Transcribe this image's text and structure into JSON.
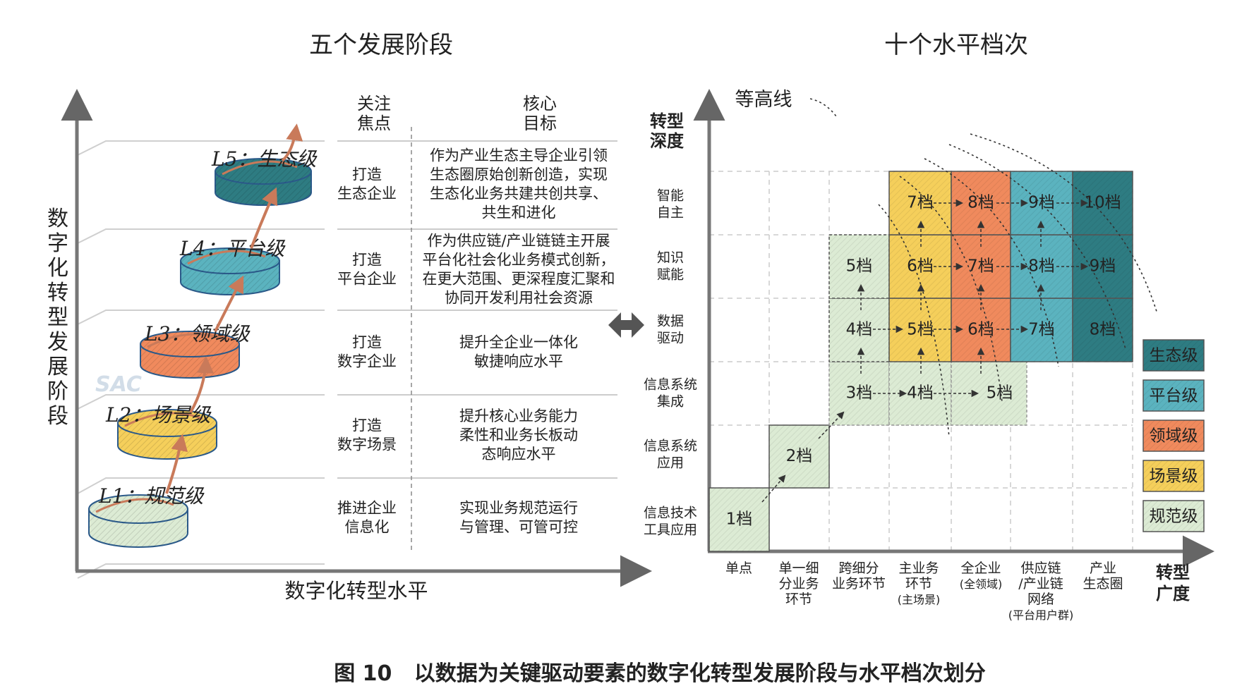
{
  "left_title": "五个发展阶段",
  "right_title": "十个水平档次",
  "left_y_axis": [
    "数",
    "字",
    "化",
    "转",
    "型",
    "发",
    "展",
    "阶",
    "段"
  ],
  "left_x_axis": "数字化转型水平",
  "table_headers": {
    "focus": [
      "关注",
      "焦点"
    ],
    "goal": [
      "核心",
      "目标"
    ]
  },
  "stages": [
    {
      "label": "L5：生态级",
      "focus": [
        "打造",
        "生态企业"
      ],
      "goal": [
        "作为产业生态主导企业引领",
        "生态圈原始创新创造，实现",
        "生态化业务共建共创共享、",
        "共生和进化"
      ]
    },
    {
      "label": "L4：平台级",
      "focus": [
        "打造",
        "平台企业"
      ],
      "goal": [
        "作为供应链/产业链链主开展",
        "平台化社会化业务模式创新，",
        "在更大范围、更深程度汇聚和",
        "协同开发利用社会资源"
      ]
    },
    {
      "label": "L3：领域级",
      "focus": [
        "打造",
        "数字企业"
      ],
      "goal": [
        "提升全企业一体化",
        "敏捷响应水平"
      ]
    },
    {
      "label": "L2：场景级",
      "focus": [
        "打造",
        "数字场景"
      ],
      "goal": [
        "提升核心业务能力",
        "柔性和业务长板动",
        "态响应水平"
      ]
    },
    {
      "label": "L1：规范级",
      "focus": [
        "推进企业",
        "信息化"
      ],
      "goal": [
        "实现业务规范运行",
        "与管理、可管可控"
      ]
    }
  ],
  "watermark": "SAC",
  "contour_label": "等高线",
  "depth_axis_title": [
    "转型",
    "深度"
  ],
  "depth_rows": [
    [
      "智能",
      "自主"
    ],
    [
      "知识",
      "赋能"
    ],
    [
      "数据",
      "驱动"
    ],
    [
      "信息系统",
      "集成"
    ],
    [
      "信息系统",
      "应用"
    ],
    [
      "信息技术",
      "工具应用"
    ]
  ],
  "breadth_axis_title": [
    "转型",
    "广度"
  ],
  "breadth_cols": [
    [
      "单点"
    ],
    [
      "单一细",
      "分业务",
      "环节"
    ],
    [
      "跨细分",
      "业务环节"
    ],
    [
      "主业务",
      "环节",
      "(主场景)"
    ],
    [
      "全企业",
      "(全领域)"
    ],
    [
      "供应链",
      "/产业链",
      "网络",
      "(平台用户群)"
    ],
    [
      "产业",
      "生态圈"
    ]
  ],
  "grid_cells": [
    {
      "text": "1档",
      "level": "规范级"
    },
    {
      "text": "2档",
      "level": "规范级"
    },
    {
      "text": "3档",
      "level": "规范级"
    },
    {
      "text": "4档",
      "level": "规范级"
    },
    {
      "text": "5档",
      "level": "规范级"
    },
    {
      "text": "4档",
      "level": "规范级"
    },
    {
      "text": "5档",
      "level": "场景级"
    },
    {
      "text": "6档",
      "level": "领域级"
    },
    {
      "text": "7档",
      "level": "平台级"
    },
    {
      "text": "8档",
      "level": "生态级"
    },
    {
      "text": "5档",
      "level": "规范级"
    },
    {
      "text": "6档",
      "level": "场景级"
    },
    {
      "text": "7档",
      "level": "领域级"
    },
    {
      "text": "8档",
      "level": "平台级"
    },
    {
      "text": "9档",
      "level": "生态级"
    },
    {
      "text": "7档",
      "level": "场景级"
    },
    {
      "text": "8档",
      "level": "领域级"
    },
    {
      "text": "9档",
      "level": "平台级"
    },
    {
      "text": "10档",
      "level": "生态级"
    }
  ],
  "legend": [
    {
      "label": "生态级",
      "color": "#2e7c82"
    },
    {
      "label": "平台级",
      "color": "#5bb3bf"
    },
    {
      "label": "领域级",
      "color": "#f08a5d"
    },
    {
      "label": "场景级",
      "color": "#f5cf5b"
    },
    {
      "label": "规范级",
      "color": "#dcebd4"
    }
  ],
  "caption": "图 10   以数据为关键驱动要素的数字化转型发展阶段与水平档次划分"
}
